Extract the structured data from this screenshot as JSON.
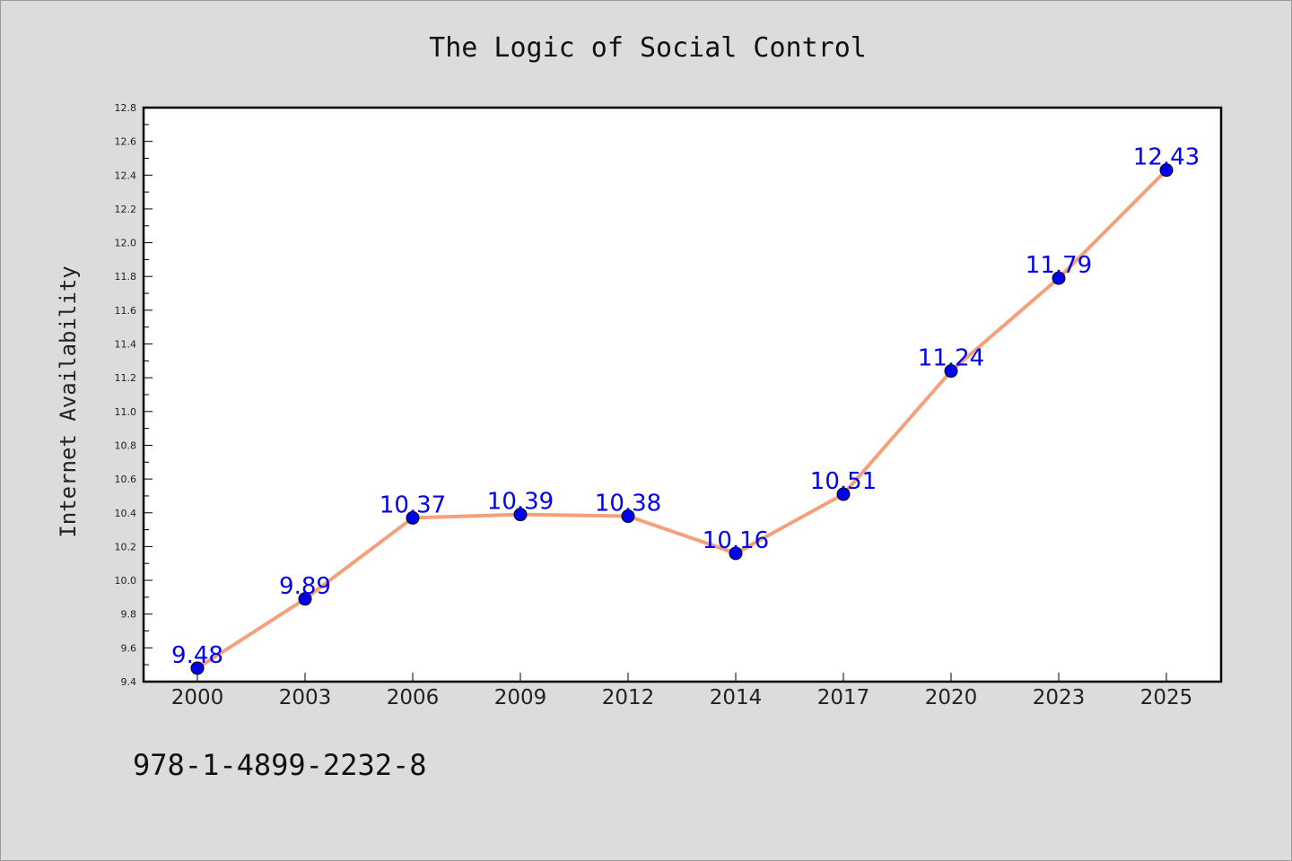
{
  "footer": {
    "isbn": "978-1-4899-2232-8"
  },
  "chart_data": {
    "type": "line",
    "title": "The Logic of Social Control",
    "xlabel": "",
    "ylabel": "Internet Availability",
    "categories": [
      "2000",
      "2003",
      "2006",
      "2009",
      "2012",
      "2014",
      "2017",
      "2020",
      "2023",
      "2025"
    ],
    "series": [
      {
        "values": [
          9.48,
          9.89,
          10.37,
          10.39,
          10.38,
          10.16,
          10.51,
          11.24,
          11.79,
          12.43
        ],
        "line_color": "#f4a07a",
        "marker_color": "#0000ee"
      }
    ],
    "ylim": [
      9.4,
      12.8
    ],
    "yticks": [
      "9.4",
      "9.6",
      "9.8",
      "10.0",
      "10.2",
      "10.4",
      "10.6",
      "10.8",
      "11.0",
      "11.2",
      "11.4",
      "11.6",
      "11.8",
      "12.0",
      "12.2",
      "12.4",
      "12.6",
      "12.8"
    ],
    "data_labels": [
      "9.48",
      "9.89",
      "10.37",
      "10.39",
      "10.38",
      "10.16",
      "10.51",
      "11.24",
      "11.79",
      "12.43"
    ],
    "grid": false,
    "legend": "none"
  }
}
